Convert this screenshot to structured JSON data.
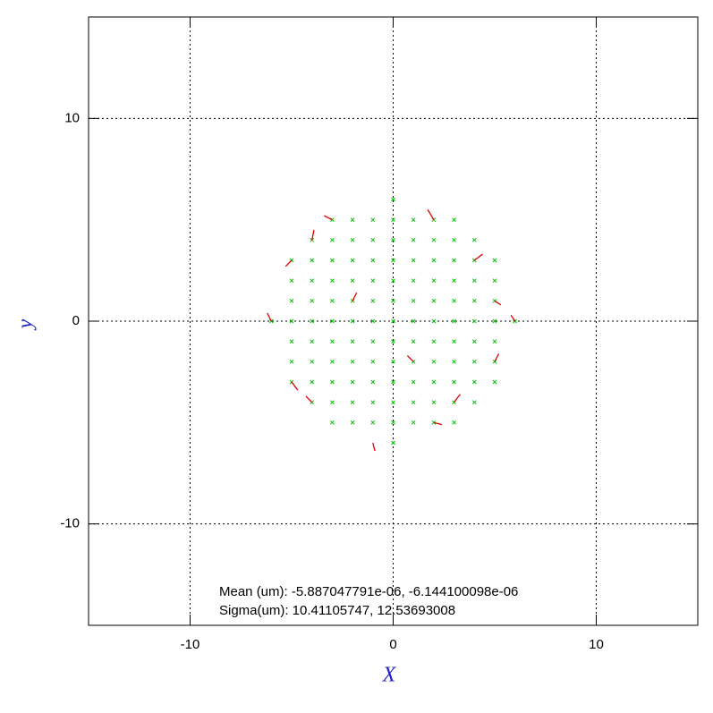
{
  "chart_data": {
    "type": "scatter",
    "xlabel": "X",
    "ylabel": "y",
    "xlim": [
      -15,
      15
    ],
    "ylim": [
      -15,
      15
    ],
    "xticks": [
      -10,
      0,
      10
    ],
    "yticks": [
      -10,
      0,
      10
    ],
    "grid": true,
    "annotations": [
      "Mean (um): -5.887047791e-06, -6.144100098e-06",
      "Sigma(um): 10.41105747, 12.53693008"
    ],
    "points": {
      "color": "#00c000",
      "x": [
        0,
        -3,
        -2,
        -1,
        0,
        1,
        2,
        3,
        -4,
        -3,
        -2,
        -1,
        0,
        1,
        2,
        3,
        4,
        -5,
        -4,
        -3,
        -2,
        -1,
        0,
        1,
        2,
        3,
        4,
        5,
        -5,
        -4,
        -3,
        -2,
        -1,
        0,
        1,
        2,
        3,
        4,
        5,
        -5,
        -4,
        -3,
        -2,
        -1,
        0,
        1,
        2,
        3,
        4,
        5,
        -6,
        -5,
        -4,
        -3,
        -2,
        -1,
        0,
        1,
        2,
        3,
        4,
        5,
        6,
        -5,
        -4,
        -3,
        -2,
        -1,
        0,
        1,
        2,
        3,
        4,
        5,
        -5,
        -4,
        -3,
        -2,
        -1,
        0,
        1,
        2,
        3,
        4,
        5,
        -5,
        -4,
        -3,
        -2,
        -1,
        0,
        1,
        2,
        3,
        4,
        5,
        -4,
        -3,
        -2,
        -1,
        0,
        1,
        2,
        3,
        4,
        -3,
        -2,
        -1,
        0,
        1,
        2,
        3,
        0
      ],
      "y": [
        6,
        5,
        5,
        5,
        5,
        5,
        5,
        5,
        4,
        4,
        4,
        4,
        4,
        4,
        4,
        4,
        4,
        3,
        3,
        3,
        3,
        3,
        3,
        3,
        3,
        3,
        3,
        3,
        2,
        2,
        2,
        2,
        2,
        2,
        2,
        2,
        2,
        2,
        2,
        1,
        1,
        1,
        1,
        1,
        1,
        1,
        1,
        1,
        1,
        1,
        0,
        0,
        0,
        0,
        0,
        0,
        0,
        0,
        0,
        0,
        0,
        0,
        0,
        -1,
        -1,
        -1,
        -1,
        -1,
        -1,
        -1,
        -1,
        -1,
        -1,
        -1,
        -2,
        -2,
        -2,
        -2,
        -2,
        -2,
        -2,
        -2,
        -2,
        -2,
        -2,
        -3,
        -3,
        -3,
        -3,
        -3,
        -3,
        -3,
        -3,
        -3,
        -3,
        -3,
        -4,
        -4,
        -4,
        -4,
        -4,
        -4,
        -4,
        -4,
        -4,
        -5,
        -5,
        -5,
        -5,
        -5,
        -5,
        -5,
        -6
      ]
    },
    "vectors": {
      "color": "#e00000",
      "x": [
        -6,
        -5,
        -5,
        -4,
        -3,
        2,
        4,
        5,
        6,
        5,
        2,
        -1,
        -4,
        -2,
        1,
        3
      ],
      "y": [
        0,
        3,
        -3,
        4,
        5,
        5,
        3,
        1,
        0,
        -2,
        -5,
        -6,
        -4,
        1,
        -2,
        -4
      ],
      "u": [
        -0.2,
        -0.3,
        0.3,
        0.1,
        -0.4,
        -0.3,
        0.4,
        0.3,
        -0.2,
        0.2,
        0.4,
        0.1,
        -0.3,
        0.2,
        -0.3,
        0.3
      ],
      "v": [
        0.4,
        -0.3,
        -0.4,
        0.5,
        0.2,
        0.5,
        0.3,
        -0.2,
        0.3,
        0.4,
        -0.1,
        -0.4,
        0.3,
        0.4,
        0.3,
        0.4
      ]
    }
  }
}
